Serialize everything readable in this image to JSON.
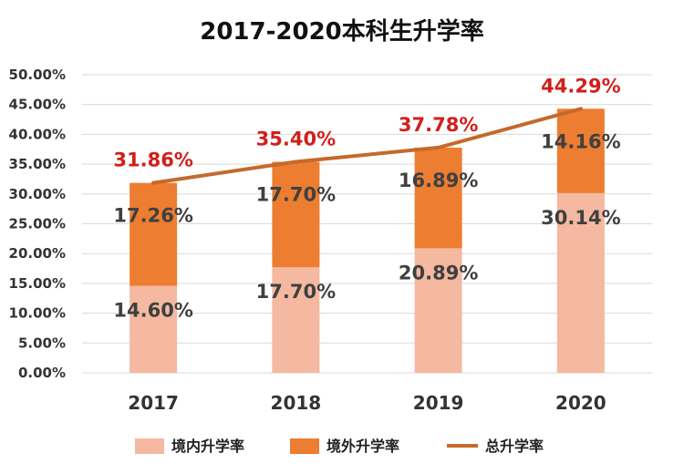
{
  "chart_data": {
    "type": "bar",
    "title": "2017-2020本科生升学率",
    "categories": [
      "2017",
      "2018",
      "2019",
      "2020"
    ],
    "series": [
      {
        "name": "境内升学率",
        "kind": "stacked-bar",
        "values": [
          14.6,
          17.7,
          20.89,
          30.14
        ],
        "labels": [
          "14.60%",
          "17.70%",
          "20.89%",
          "30.14%"
        ],
        "color": "#f4b9a0"
      },
      {
        "name": "境外升学率",
        "kind": "stacked-bar",
        "values": [
          17.26,
          17.7,
          16.89,
          14.16
        ],
        "labels": [
          "17.26%",
          "17.70%",
          "16.89%",
          "14.16%"
        ],
        "color": "#ed7d31"
      },
      {
        "name": "总升学率",
        "kind": "line",
        "values": [
          31.86,
          35.4,
          37.78,
          44.29
        ],
        "labels": [
          "31.86%",
          "35.40%",
          "37.78%",
          "44.29%"
        ],
        "color": "#c5692c"
      }
    ],
    "yticks": [
      "0.00%",
      "5.00%",
      "10.00%",
      "15.00%",
      "20.00%",
      "25.00%",
      "30.00%",
      "35.00%",
      "40.00%",
      "45.00%",
      "50.00%"
    ],
    "ylim": [
      0,
      50
    ],
    "xlabel": "",
    "ylabel": "",
    "grid": true,
    "legend_position": "bottom",
    "colors": {
      "total_label": "#d0201c",
      "grid": "#d9d9d9"
    }
  }
}
